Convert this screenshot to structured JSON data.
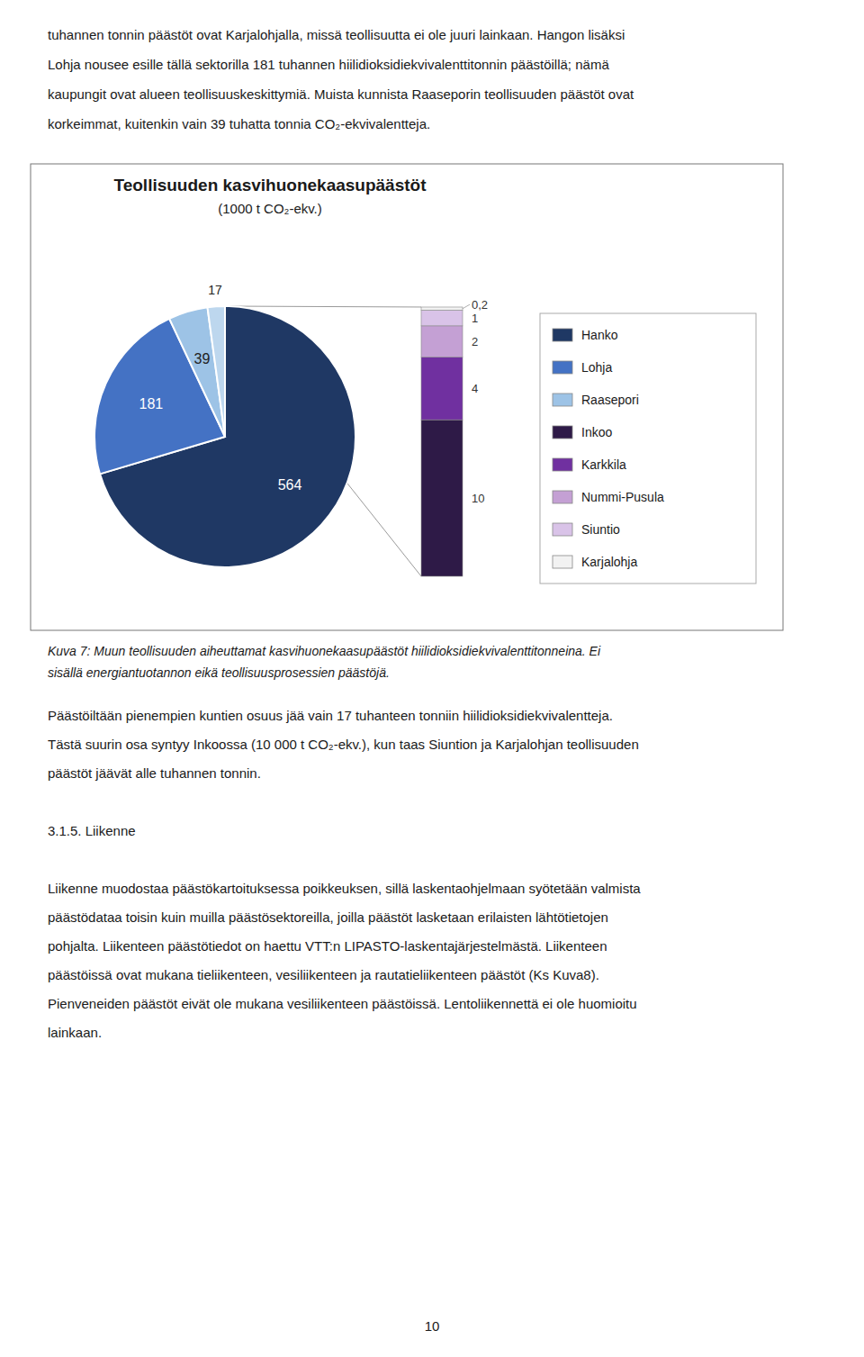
{
  "chart_data": [
    {
      "type": "pie",
      "title": "Teollisuuden kasvihuonekaasupäästöt",
      "subtitle": "(1000 t CO₂-ekv.)",
      "categories": [
        "Hanko",
        "Lohja",
        "Raasepori",
        null
      ],
      "values": [
        564,
        181,
        39,
        17.2
      ],
      "value_labels": [
        "564",
        "181",
        "39",
        "17"
      ],
      "colors": [
        "#1F3864",
        "#4472C4",
        "#9DC3E6",
        "#BDD7EE"
      ],
      "data_labels": true,
      "legend": "right"
    },
    {
      "type": "bar",
      "stacked": true,
      "data_labels": true,
      "tick_labels": false,
      "ylim": [
        0,
        17.544
      ],
      "legend": "right",
      "series": [
        {
          "name": "Inkoo",
          "color": "#2E1A47",
          "values": [
            10
          ],
          "value_labels": [
            "10"
          ]
        },
        {
          "name": "Karkkila",
          "color": "#7030A0",
          "values": [
            4
          ],
          "value_labels": [
            "4"
          ]
        },
        {
          "name": "Nummi-Pusula",
          "color": "#C4A0D4",
          "values": [
            2
          ],
          "value_labels": [
            "2"
          ]
        },
        {
          "name": "Siuntio",
          "color": "#D9C3E8",
          "values": [
            1
          ],
          "value_labels": [
            "1"
          ]
        },
        {
          "name": "Karjalohja",
          "color": "#F2F2F2",
          "values": [
            0.2
          ],
          "value_labels": [
            "0,2"
          ]
        }
      ]
    }
  ],
  "page": {
    "text_above": [
      "tuhannen tonnin päästöt ovat Karjalohjalla, missä teollisuutta ei ole juuri lainkaan. Hangon lisäksi",
      "Lohja nousee esille tällä sektorilla 181 tuhannen hiilidioksidiekvivalenttitonnin päästöillä;  nämä",
      "kaupungit ovat alueen teollisuuskeskittymiä. Muista kunnista Raaseporin teollisuuden päästöt ovat",
      "korkeimmat, kuitenkin vain 39 tuhatta tonnia CO₂-ekvivalentteja."
    ],
    "caption": [
      "Kuva 7: Muun teollisuuden aiheuttamat kasvihuonekaasupäästöt hiilidioksidiekvivalenttitonneina. Ei",
      "sisällä energiantuotannon eikä teollisuusprosessien päästöjä."
    ],
    "text_below": [
      [
        "Päästöiltään pienempien kuntien osuus jää vain 17 tuhanteen tonniin hiilidioksidiekvivalentteja.",
        "Tästä suurin osa syntyy Inkoossa (10 000 t CO₂-ekv.), kun taas Siuntion ja Karjalohjan teollisuuden",
        "päästöt jäävät alle tuhannen tonnin."
      ],
      [
        "3.1.5. Liikenne"
      ],
      [
        "Liikenne muodostaa päästökartoituksessa poikkeuksen, sillä laskentaohjelmaan syötetään valmista",
        "päästödataa toisin kuin muilla päästösektoreilla, joilla päästöt lasketaan erilaisten lähtötietojen",
        "pohjalta. Liikenteen päästötiedot on haettu VTT:n LIPASTO-laskentajärjestelmästä. Liikenteen",
        "päästöissä ovat mukana tieliikenteen, vesiliikenteen ja rautatieliikenteen päästöt (Ks Kuva8).",
        "Pienveneiden päästöt eivät ole mukana vesiliikenteen päästöissä. Lentoliikennettä ei ole huomioitu",
        "lainkaan."
      ]
    ],
    "page_number": "10"
  }
}
